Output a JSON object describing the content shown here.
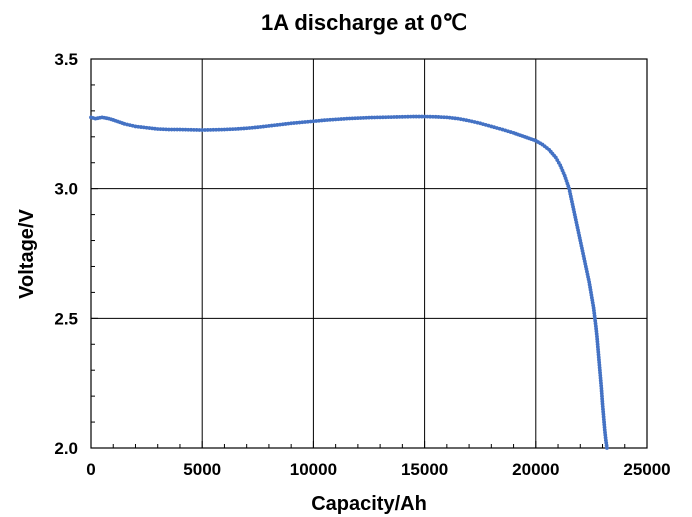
{
  "chart_data": {
    "type": "scatter",
    "title": "1A discharge at 0℃",
    "xlabel": "Capacity/Ah",
    "ylabel": "Voltage/V",
    "xlim": [
      0,
      25000
    ],
    "ylim": [
      2.0,
      3.5
    ],
    "xticks": [
      0,
      5000,
      10000,
      15000,
      20000,
      25000
    ],
    "yticks": [
      2.0,
      2.5,
      3.0,
      3.5
    ],
    "xtick_labels": [
      "0",
      "5000",
      "10000",
      "15000",
      "20000",
      "25000"
    ],
    "ytick_labels": [
      "2.0",
      "2.5",
      "3.0",
      "3.5"
    ],
    "grid": true,
    "legend": "none",
    "marker_color": "#4472C4",
    "series": [
      {
        "x": [
          0,
          200,
          500,
          800,
          1000,
          1500,
          2000,
          2500,
          3000,
          3500,
          4000,
          4500,
          5000,
          5500,
          6000,
          6500,
          7000,
          7500,
          8000,
          8500,
          9000,
          9500,
          10000,
          10500,
          11000,
          11500,
          12000,
          12500,
          13000,
          13500,
          14000,
          14500,
          15000,
          15500,
          16000,
          16500,
          17000,
          17500,
          18000,
          18500,
          19000,
          19500,
          20000,
          20300,
          20600,
          20900,
          21100,
          21300,
          21500,
          21600,
          21700,
          21800,
          21900,
          22000,
          22100,
          22200,
          22300,
          22400,
          22500,
          22600,
          22700,
          22750,
          22800,
          22850,
          22900,
          22950,
          23000,
          23050,
          23100,
          23150,
          23200
        ],
        "y": [
          3.275,
          3.27,
          3.275,
          3.27,
          3.265,
          3.25,
          3.24,
          3.235,
          3.23,
          3.228,
          3.228,
          3.227,
          3.226,
          3.227,
          3.228,
          3.23,
          3.233,
          3.237,
          3.242,
          3.247,
          3.252,
          3.256,
          3.26,
          3.264,
          3.267,
          3.27,
          3.272,
          3.274,
          3.275,
          3.276,
          3.277,
          3.278,
          3.278,
          3.277,
          3.275,
          3.27,
          3.262,
          3.252,
          3.24,
          3.228,
          3.215,
          3.2,
          3.185,
          3.17,
          3.15,
          3.12,
          3.09,
          3.05,
          3.0,
          2.96,
          2.92,
          2.88,
          2.84,
          2.8,
          2.76,
          2.72,
          2.68,
          2.64,
          2.59,
          2.54,
          2.47,
          2.43,
          2.38,
          2.33,
          2.28,
          2.23,
          2.17,
          2.12,
          2.07,
          2.03,
          2.0
        ]
      }
    ]
  }
}
